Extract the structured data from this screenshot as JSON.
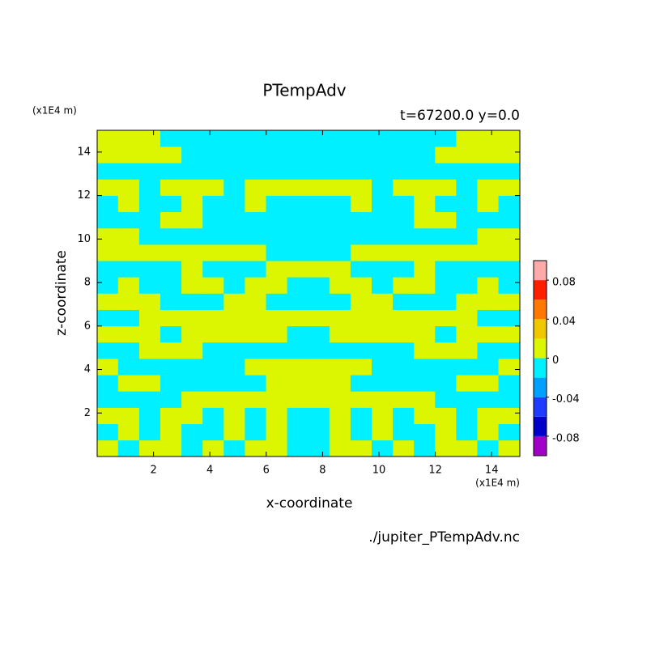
{
  "chart_data": {
    "type": "contourf",
    "title": "PTempAdv",
    "subtitle": "t=67200.0 y=0.0",
    "x_label": "x-coordinate",
    "y_label": "z-coordinate",
    "x_unit": "(x1E4 m)",
    "y_unit": "(x1E4 m)",
    "source": "./jupiter_PTempAdv.nc",
    "xlim": [
      0,
      15
    ],
    "ylim": [
      0,
      15
    ],
    "xticks": [
      2,
      4,
      6,
      8,
      10,
      12,
      14
    ],
    "yticks": [
      2,
      4,
      6,
      8,
      10,
      12,
      14
    ],
    "levels": [
      -0.1,
      -0.08,
      -0.06,
      -0.04,
      -0.02,
      0,
      0.02,
      0.04,
      0.06,
      0.08,
      0.1
    ],
    "colors": [
      "#a000c8",
      "#0000c8",
      "#1e3cff",
      "#00a0ff",
      "#00f0ff",
      "#dcf500",
      "#f0c800",
      "#ff7800",
      "#ff1e00",
      "#ffaaaa"
    ],
    "colorbar_ticks": [
      -0.08,
      -0.04,
      0,
      0.04,
      0.08
    ],
    "z_values": [
      [
        0.01,
        -0.01,
        0.01,
        0.01,
        -0.01,
        0.01,
        -0.01,
        0.01,
        0.01,
        -0.01,
        -0.01,
        0.01,
        0.01,
        -0.01,
        0.01,
        -0.01,
        0.01,
        0.01,
        -0.01,
        0.01
      ],
      [
        -0.01,
        0.01,
        -0.01,
        0.01,
        -0.01,
        -0.01,
        0.01,
        -0.01,
        0.01,
        -0.01,
        -0.01,
        0.01,
        -0.01,
        0.01,
        -0.01,
        -0.01,
        0.01,
        -0.01,
        0.01,
        -0.01
      ],
      [
        0.01,
        0.01,
        -0.01,
        0.01,
        0.01,
        -0.01,
        0.01,
        -0.01,
        0.01,
        -0.01,
        -0.01,
        0.01,
        -0.01,
        0.01,
        -0.01,
        0.01,
        0.01,
        -0.01,
        0.01,
        0.01
      ],
      [
        -0.01,
        -0.01,
        -0.01,
        -0.01,
        0.01,
        0.01,
        0.01,
        0.01,
        0.01,
        0.01,
        0.01,
        0.01,
        0.01,
        0.01,
        0.01,
        0.01,
        -0.01,
        -0.01,
        -0.01,
        -0.01
      ],
      [
        -0.01,
        0.01,
        0.01,
        -0.01,
        -0.01,
        -0.01,
        -0.01,
        -0.01,
        0.01,
        0.01,
        0.01,
        0.01,
        -0.01,
        -0.01,
        -0.01,
        -0.01,
        -0.01,
        0.01,
        0.01,
        -0.01
      ],
      [
        0.01,
        -0.01,
        -0.01,
        -0.01,
        -0.01,
        -0.01,
        -0.01,
        0.01,
        0.01,
        0.01,
        0.01,
        0.01,
        0.01,
        -0.01,
        -0.01,
        -0.01,
        -0.01,
        -0.01,
        -0.01,
        0.01
      ],
      [
        -0.01,
        -0.01,
        0.01,
        0.01,
        0.01,
        -0.01,
        -0.01,
        -0.01,
        -0.01,
        -0.01,
        -0.01,
        -0.01,
        -0.01,
        -0.01,
        -0.01,
        0.01,
        0.01,
        0.01,
        -0.01,
        -0.01
      ],
      [
        0.01,
        0.01,
        0.01,
        -0.01,
        0.01,
        0.01,
        0.01,
        0.01,
        0.01,
        -0.01,
        -0.01,
        0.01,
        0.01,
        0.01,
        0.01,
        0.01,
        -0.01,
        0.01,
        0.01,
        0.01
      ],
      [
        -0.01,
        -0.01,
        0.01,
        0.01,
        0.01,
        0.01,
        0.01,
        0.01,
        0.01,
        0.01,
        0.01,
        0.01,
        0.01,
        0.01,
        0.01,
        0.01,
        0.01,
        0.01,
        -0.01,
        -0.01
      ],
      [
        0.01,
        0.01,
        0.01,
        -0.01,
        -0.01,
        -0.01,
        0.01,
        0.01,
        -0.01,
        -0.01,
        -0.01,
        -0.01,
        0.01,
        0.01,
        -0.01,
        -0.01,
        -0.01,
        0.01,
        0.01,
        0.01
      ],
      [
        -0.01,
        0.01,
        -0.01,
        -0.01,
        0.01,
        0.01,
        -0.01,
        0.01,
        0.01,
        -0.01,
        -0.01,
        0.01,
        0.01,
        -0.01,
        0.01,
        0.01,
        -0.01,
        -0.01,
        0.01,
        -0.01
      ],
      [
        -0.01,
        -0.01,
        -0.01,
        -0.01,
        0.01,
        -0.01,
        -0.01,
        -0.01,
        0.01,
        0.01,
        0.01,
        0.01,
        -0.01,
        -0.01,
        -0.01,
        0.01,
        -0.01,
        -0.01,
        -0.01,
        -0.01
      ],
      [
        0.01,
        0.01,
        0.01,
        0.01,
        0.01,
        0.01,
        0.01,
        0.01,
        -0.01,
        -0.01,
        -0.01,
        -0.01,
        0.01,
        0.01,
        0.01,
        0.01,
        0.01,
        0.01,
        0.01,
        0.01
      ],
      [
        0.01,
        0.01,
        -0.01,
        -0.01,
        -0.01,
        -0.01,
        -0.01,
        -0.01,
        -0.01,
        -0.01,
        -0.01,
        -0.01,
        -0.01,
        -0.01,
        -0.01,
        -0.01,
        -0.01,
        -0.01,
        0.01,
        0.01
      ],
      [
        -0.01,
        -0.01,
        -0.01,
        0.01,
        0.01,
        -0.01,
        -0.01,
        -0.01,
        -0.01,
        -0.01,
        -0.01,
        -0.01,
        -0.01,
        -0.01,
        -0.01,
        0.01,
        0.01,
        -0.01,
        -0.01,
        -0.01
      ],
      [
        -0.01,
        0.01,
        -0.01,
        -0.01,
        0.01,
        -0.01,
        -0.01,
        0.01,
        -0.01,
        -0.01,
        -0.01,
        -0.01,
        0.01,
        -0.01,
        -0.01,
        0.01,
        -0.01,
        -0.01,
        0.01,
        -0.01
      ],
      [
        0.01,
        0.01,
        -0.01,
        0.01,
        0.01,
        0.01,
        -0.01,
        0.01,
        0.01,
        0.01,
        0.01,
        0.01,
        0.01,
        -0.01,
        0.01,
        0.01,
        0.01,
        -0.01,
        0.01,
        0.01
      ],
      [
        -0.01,
        -0.01,
        -0.01,
        -0.01,
        -0.01,
        -0.01,
        -0.01,
        -0.01,
        -0.01,
        -0.01,
        -0.01,
        -0.01,
        -0.01,
        -0.01,
        -0.01,
        -0.01,
        -0.01,
        -0.01,
        -0.01,
        -0.01
      ],
      [
        0.01,
        0.01,
        0.01,
        0.01,
        -0.01,
        -0.01,
        -0.01,
        -0.01,
        -0.01,
        -0.01,
        -0.01,
        -0.01,
        -0.01,
        -0.01,
        -0.01,
        -0.01,
        0.01,
        0.01,
        0.01,
        0.01
      ],
      [
        0.01,
        0.01,
        0.01,
        -0.01,
        -0.01,
        -0.01,
        -0.01,
        -0.01,
        -0.01,
        -0.01,
        -0.01,
        -0.01,
        -0.01,
        -0.01,
        -0.01,
        -0.01,
        -0.01,
        0.01,
        0.01,
        0.01
      ]
    ]
  }
}
